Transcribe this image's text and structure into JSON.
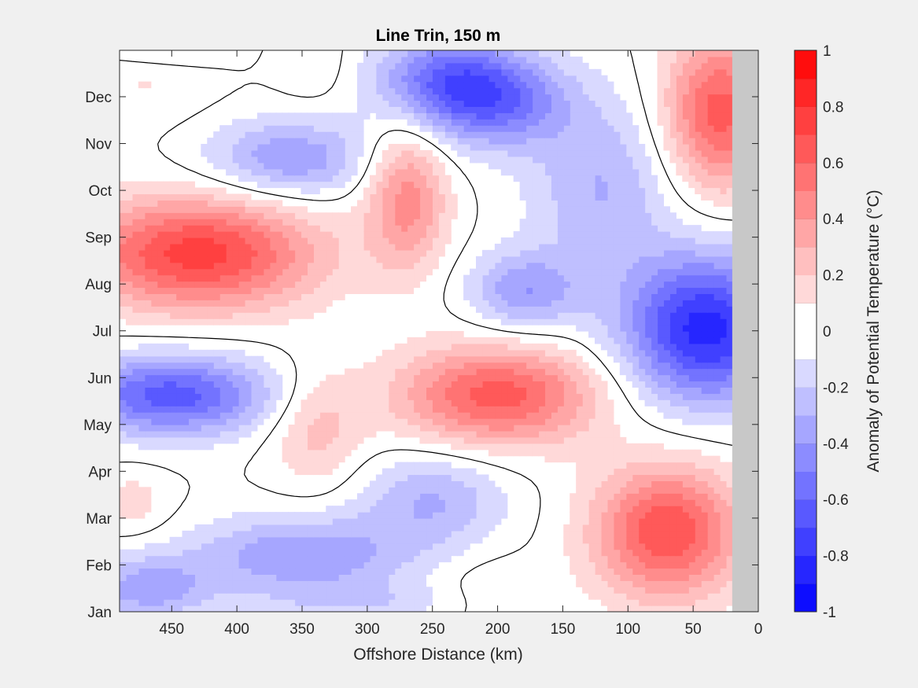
{
  "chart_data": {
    "type": "heatmap",
    "title": "Line Trin, 150 m",
    "xlabel": "Offshore Distance (km)",
    "ylabel": "",
    "x_axis": {
      "reversed": true,
      "range": [
        0,
        490
      ],
      "ticks": [
        450,
        400,
        350,
        300,
        250,
        200,
        150,
        100,
        50,
        0
      ]
    },
    "y_axis": {
      "categories": [
        "Jan",
        "Feb",
        "Mar",
        "Apr",
        "May",
        "Jun",
        "Jul",
        "Aug",
        "Sep",
        "Oct",
        "Nov",
        "Dec"
      ]
    },
    "no_data_region_km": [
      0,
      20
    ],
    "colorbar": {
      "label": "Anomaly of Potential Temperature (°C)",
      "range": [
        -1,
        1
      ],
      "step": 0.1,
      "ticks": [
        1,
        0.8,
        0.6,
        0.4,
        0.2,
        0,
        -0.2,
        -0.4,
        -0.6,
        -0.8,
        -1
      ],
      "neg_color": "#0000ff",
      "pos_color": "#ff0000",
      "no_data_color": "#c8c8c8"
    },
    "anomaly_centers": [
      {
        "km": 430,
        "month": 7.6,
        "value": 0.75,
        "sx": 65,
        "sy": 0.85
      },
      {
        "km": 270,
        "month": 8.8,
        "value": 0.45,
        "sx": 22,
        "sy": 1.1
      },
      {
        "km": 200,
        "month": 4.6,
        "value": 0.65,
        "sx": 55,
        "sy": 0.75
      },
      {
        "km": 70,
        "month": 1.7,
        "value": 0.7,
        "sx": 40,
        "sy": 1.0
      },
      {
        "km": 30,
        "month": 10.6,
        "value": 0.65,
        "sx": 30,
        "sy": 1.2
      },
      {
        "km": 340,
        "month": 3.9,
        "value": 0.25,
        "sx": 25,
        "sy": 0.9
      },
      {
        "km": 470,
        "month": 11.4,
        "value": 0.12,
        "sx": 35,
        "sy": 0.7
      },
      {
        "km": 340,
        "month": 11.6,
        "value": 0.1,
        "sx": 20,
        "sy": 0.6
      },
      {
        "km": 480,
        "month": 2.3,
        "value": 0.15,
        "sx": 20,
        "sy": 0.5
      },
      {
        "km": 200,
        "month": 0.4,
        "value": 0.12,
        "sx": 30,
        "sy": 0.5
      },
      {
        "km": 40,
        "month": 6.0,
        "value": -0.85,
        "sx": 45,
        "sy": 1.1
      },
      {
        "km": 450,
        "month": 4.6,
        "value": -0.65,
        "sx": 55,
        "sy": 0.6
      },
      {
        "km": 360,
        "month": 9.6,
        "value": -0.4,
        "sx": 45,
        "sy": 0.6
      },
      {
        "km": 240,
        "month": 11.3,
        "value": -0.5,
        "sx": 40,
        "sy": 0.7
      },
      {
        "km": 200,
        "month": 10.8,
        "value": -0.45,
        "sx": 40,
        "sy": 0.7
      },
      {
        "km": 180,
        "month": 6.8,
        "value": -0.38,
        "sx": 30,
        "sy": 0.6
      },
      {
        "km": 120,
        "month": 9.0,
        "value": -0.3,
        "sx": 40,
        "sy": 1.3
      },
      {
        "km": 350,
        "month": 1.2,
        "value": -0.4,
        "sx": 60,
        "sy": 0.6
      },
      {
        "km": 250,
        "month": 2.4,
        "value": -0.3,
        "sx": 40,
        "sy": 0.7
      },
      {
        "km": 470,
        "month": 0.5,
        "value": -0.35,
        "sx": 35,
        "sy": 0.5
      },
      {
        "km": 460,
        "month": 12.0,
        "value": -0.2,
        "sx": 35,
        "sy": 0.35
      },
      {
        "km": 300,
        "month": 0.2,
        "value": -0.15,
        "sx": 60,
        "sy": 0.3
      }
    ]
  }
}
